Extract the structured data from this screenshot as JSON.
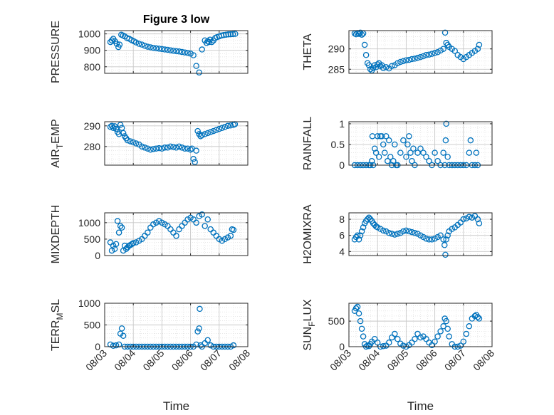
{
  "chart_data": [
    {
      "type": "scatter",
      "title": "Figure 3 low",
      "ylabel": "PRESSURE",
      "ylabel_sub": "",
      "ylabel_tail": "",
      "xlim": [
        0,
        5
      ],
      "ylim": [
        760,
        1020
      ],
      "yticks": [
        800,
        900,
        1000
      ],
      "xticks": [
        "08/03",
        "08/04",
        "08/05",
        "08/06",
        "08/07",
        "08/08"
      ],
      "show_xticklabels": false,
      "xlabel": "",
      "grid": true,
      "x": [
        0.2,
        0.25,
        0.3,
        0.36,
        0.42,
        0.48,
        0.52,
        0.58,
        0.64,
        0.7,
        0.78,
        0.86,
        0.94,
        1.02,
        1.1,
        1.2,
        1.3,
        1.4,
        1.5,
        1.6,
        1.7,
        1.8,
        1.9,
        2.0,
        2.1,
        2.2,
        2.3,
        2.4,
        2.5,
        2.6,
        2.7,
        2.8,
        2.9,
        3.0,
        3.1,
        3.2,
        3.3,
        3.4,
        3.5,
        3.56,
        3.6,
        3.64,
        3.68,
        3.74,
        3.8,
        3.86,
        3.92,
        4.0,
        4.08,
        4.16,
        4.24,
        4.32,
        4.4,
        4.48,
        4.56
      ],
      "y": [
        950,
        960,
        970,
        955,
        940,
        920,
        935,
        995,
        990,
        985,
        975,
        970,
        962,
        955,
        948,
        940,
        935,
        928,
        922,
        918,
        915,
        912,
        910,
        908,
        905,
        903,
        900,
        897,
        895,
        893,
        890,
        887,
        884,
        880,
        870,
        805,
        765,
        905,
        960,
        945,
        955,
        950,
        965,
        950,
        960,
        975,
        980,
        985,
        990,
        993,
        995,
        997,
        998,
        999,
        1000
      ]
    },
    {
      "type": "scatter",
      "title": "",
      "ylabel": "THETA",
      "ylabel_sub": "",
      "ylabel_tail": "",
      "xlim": [
        0,
        5
      ],
      "ylim": [
        284,
        294.5
      ],
      "yticks": [
        285,
        290
      ],
      "xticks": [
        "08/03",
        "08/04",
        "08/05",
        "08/06",
        "08/07",
        "08/08"
      ],
      "show_xticklabels": false,
      "xlabel": "",
      "grid": true,
      "x": [
        0.2,
        0.25,
        0.3,
        0.35,
        0.4,
        0.45,
        0.5,
        0.55,
        0.6,
        0.65,
        0.7,
        0.75,
        0.8,
        0.85,
        0.9,
        0.95,
        1.0,
        1.05,
        1.1,
        1.15,
        1.2,
        1.3,
        1.4,
        1.5,
        1.6,
        1.7,
        1.8,
        1.9,
        2.0,
        2.1,
        2.2,
        2.3,
        2.4,
        2.5,
        2.6,
        2.7,
        2.8,
        2.9,
        3.0,
        3.1,
        3.2,
        3.3,
        3.36,
        3.4,
        3.45,
        3.5,
        3.6,
        3.7,
        3.8,
        3.9,
        4.0,
        4.1,
        4.2,
        4.3,
        4.4,
        4.5,
        4.55
      ],
      "y": [
        293.8,
        293.6,
        293.9,
        293.7,
        294.0,
        293.5,
        293.8,
        291.0,
        288.5,
        286.5,
        286.0,
        285.0,
        284.7,
        285.3,
        286.0,
        285.5,
        286.2,
        286.5,
        285.8,
        286.0,
        285.3,
        285.5,
        285.2,
        285.8,
        286.0,
        286.5,
        286.8,
        287.0,
        287.2,
        287.3,
        287.5,
        287.6,
        287.8,
        288.0,
        288.2,
        288.5,
        288.6,
        288.8,
        289.0,
        289.2,
        289.6,
        290.0,
        294.0,
        291.5,
        291.0,
        290.5,
        290.0,
        289.5,
        288.5,
        288.0,
        287.5,
        288.0,
        288.5,
        289.0,
        289.5,
        290.0,
        291.0
      ]
    },
    {
      "type": "scatter",
      "title": "",
      "ylabel": "AIR",
      "ylabel_sub": "T",
      "ylabel_tail": "EMP",
      "xlim": [
        0,
        5
      ],
      "ylim": [
        271,
        292
      ],
      "yticks": [
        280,
        290
      ],
      "xticks": [
        "08/03",
        "08/04",
        "08/05",
        "08/06",
        "08/07",
        "08/08"
      ],
      "show_xticklabels": false,
      "xlabel": "",
      "grid": true,
      "x": [
        0.2,
        0.25,
        0.3,
        0.35,
        0.4,
        0.45,
        0.5,
        0.55,
        0.6,
        0.65,
        0.7,
        0.75,
        0.8,
        0.9,
        1.0,
        1.1,
        1.2,
        1.3,
        1.4,
        1.5,
        1.6,
        1.7,
        1.8,
        1.9,
        2.0,
        2.1,
        2.2,
        2.3,
        2.4,
        2.5,
        2.6,
        2.7,
        2.8,
        2.9,
        3.0,
        3.05,
        3.1,
        3.15,
        3.2,
        3.25,
        3.3,
        3.35,
        3.4,
        3.5,
        3.6,
        3.7,
        3.8,
        3.9,
        4.0,
        4.1,
        4.2,
        4.3,
        4.4,
        4.5,
        4.55
      ],
      "y": [
        289.5,
        290.0,
        289.0,
        289.8,
        288.5,
        287.0,
        286.0,
        290.5,
        289.0,
        286.5,
        285.0,
        284.0,
        283.0,
        282.5,
        282.0,
        281.5,
        281.0,
        280.0,
        279.5,
        279.0,
        278.5,
        278.8,
        279.0,
        279.2,
        279.0,
        279.5,
        279.5,
        280.0,
        279.8,
        279.5,
        280.0,
        279.5,
        279.0,
        279.0,
        278.5,
        279.0,
        274.0,
        272.5,
        278.0,
        287.5,
        286.0,
        285.0,
        285.5,
        286.0,
        286.5,
        287.0,
        287.5,
        288.0,
        288.5,
        289.0,
        289.5,
        290.0,
        290.2,
        290.5,
        290.8
      ]
    },
    {
      "type": "scatter",
      "title": "",
      "ylabel": "RAINFALL",
      "ylabel_sub": "",
      "ylabel_tail": "",
      "xlim": [
        0,
        5
      ],
      "ylim": [
        0,
        1.05
      ],
      "yticks": [
        0,
        0.5,
        1
      ],
      "xticks": [
        "08/03",
        "08/04",
        "08/05",
        "08/06",
        "08/07",
        "08/08"
      ],
      "show_xticklabels": false,
      "xlabel": "",
      "grid": true,
      "x": [
        0.2,
        0.3,
        0.4,
        0.5,
        0.6,
        0.7,
        0.75,
        0.8,
        0.82,
        0.85,
        0.9,
        0.95,
        1.0,
        1.05,
        1.1,
        1.15,
        1.2,
        1.25,
        1.3,
        1.35,
        1.4,
        1.45,
        1.5,
        1.55,
        1.6,
        1.65,
        1.7,
        1.8,
        1.9,
        2.0,
        2.05,
        2.1,
        2.15,
        2.2,
        2.25,
        2.3,
        2.4,
        2.5,
        2.6,
        2.7,
        2.8,
        2.9,
        3.0,
        3.1,
        3.2,
        3.3,
        3.35,
        3.38,
        3.4,
        3.45,
        3.5,
        3.6,
        3.7,
        3.8,
        3.9,
        4.0,
        4.1,
        4.2,
        4.25,
        4.3,
        4.4,
        4.45,
        4.5
      ],
      "y": [
        0,
        0,
        0,
        0,
        0,
        0,
        0,
        0.1,
        0.7,
        0,
        0.4,
        0.3,
        0.7,
        0.2,
        0.7,
        0.7,
        0.5,
        0.3,
        0.7,
        0.1,
        0.6,
        0.2,
        0,
        0.1,
        0.5,
        0,
        0,
        0.3,
        0.6,
        0.2,
        0.5,
        0.7,
        0.3,
        0.1,
        0.4,
        0,
        0.3,
        0.4,
        0.3,
        0.2,
        0.1,
        0,
        0.3,
        0.1,
        0,
        0.3,
        0,
        0.6,
        1.0,
        0.2,
        0,
        0,
        0,
        0,
        0,
        0,
        0,
        0.3,
        0.6,
        0,
        0,
        0.3,
        0
      ]
    },
    {
      "type": "scatter",
      "title": "",
      "ylabel": "MIXDEPTH",
      "ylabel_sub": "",
      "ylabel_tail": "",
      "xlim": [
        0,
        5
      ],
      "ylim": [
        0,
        1300
      ],
      "yticks": [
        0,
        500,
        1000
      ],
      "xticks": [
        "08/03",
        "08/04",
        "08/05",
        "08/06",
        "08/07",
        "08/08"
      ],
      "show_xticklabels": false,
      "xlabel": "",
      "grid": true,
      "x": [
        0.2,
        0.25,
        0.3,
        0.35,
        0.4,
        0.45,
        0.5,
        0.55,
        0.6,
        0.65,
        0.7,
        0.75,
        0.8,
        0.85,
        0.9,
        0.95,
        1.0,
        1.1,
        1.2,
        1.3,
        1.4,
        1.5,
        1.6,
        1.7,
        1.8,
        1.9,
        2.0,
        2.1,
        2.2,
        2.3,
        2.4,
        2.5,
        2.6,
        2.7,
        2.8,
        2.9,
        3.0,
        3.1,
        3.2,
        3.3,
        3.4,
        3.5,
        3.6,
        3.7,
        3.8,
        3.9,
        4.0,
        4.1,
        4.2,
        4.3,
        4.4,
        4.45,
        4.5
      ],
      "y": [
        400,
        150,
        300,
        200,
        350,
        1050,
        700,
        900,
        850,
        150,
        300,
        200,
        250,
        300,
        320,
        350,
        380,
        400,
        450,
        500,
        600,
        700,
        850,
        950,
        1000,
        1050,
        1000,
        950,
        900,
        800,
        700,
        600,
        800,
        900,
        1000,
        1100,
        1150,
        1100,
        1000,
        1200,
        1250,
        900,
        1100,
        800,
        700,
        600,
        500,
        450,
        500,
        550,
        600,
        800,
        780
      ]
    },
    {
      "type": "scatter",
      "title": "",
      "ylabel": "H2OMIXRA",
      "ylabel_sub": "",
      "ylabel_tail": "",
      "xlim": [
        0,
        5
      ],
      "ylim": [
        3.5,
        8.8
      ],
      "yticks": [
        4,
        6,
        8
      ],
      "xticks": [
        "08/03",
        "08/04",
        "08/05",
        "08/06",
        "08/07",
        "08/08"
      ],
      "show_xticklabels": false,
      "xlabel": "",
      "grid": true,
      "x": [
        0.2,
        0.25,
        0.3,
        0.35,
        0.4,
        0.45,
        0.5,
        0.55,
        0.6,
        0.65,
        0.7,
        0.75,
        0.8,
        0.85,
        0.9,
        0.95,
        1.0,
        1.1,
        1.2,
        1.3,
        1.4,
        1.5,
        1.6,
        1.7,
        1.8,
        1.9,
        2.0,
        2.1,
        2.2,
        2.3,
        2.4,
        2.5,
        2.6,
        2.7,
        2.8,
        2.9,
        3.0,
        3.1,
        3.2,
        3.3,
        3.34,
        3.37,
        3.4,
        3.45,
        3.5,
        3.6,
        3.7,
        3.8,
        3.9,
        4.0,
        4.1,
        4.2,
        4.3,
        4.4,
        4.5,
        4.55
      ],
      "y": [
        5.5,
        5.8,
        6.0,
        5.5,
        6.0,
        6.5,
        7.0,
        7.5,
        7.8,
        8.0,
        8.2,
        8.0,
        7.8,
        7.5,
        7.3,
        7.1,
        7.0,
        6.8,
        6.6,
        6.5,
        6.3,
        6.2,
        6.1,
        6.2,
        6.3,
        6.5,
        6.6,
        6.5,
        6.4,
        6.3,
        6.2,
        6.0,
        5.8,
        5.6,
        5.5,
        5.5,
        5.6,
        5.8,
        6.0,
        5.5,
        4.8,
        3.6,
        5.5,
        6.0,
        6.5,
        6.8,
        7.0,
        7.3,
        7.6,
        8.0,
        8.1,
        8.3,
        8.2,
        8.4,
        8.0,
        7.5
      ]
    },
    {
      "type": "scatter",
      "title": "",
      "ylabel": "TERR",
      "ylabel_sub": "M",
      "ylabel_tail": "SL",
      "xlim": [
        0,
        5
      ],
      "ylim": [
        0,
        1000
      ],
      "yticks": [
        0,
        500,
        1000
      ],
      "xticks": [
        "08/03",
        "08/04",
        "08/05",
        "08/06",
        "08/07",
        "08/08"
      ],
      "show_xticklabels": true,
      "xlabel": "Time",
      "grid": true,
      "x": [
        0.2,
        0.3,
        0.4,
        0.5,
        0.55,
        0.6,
        0.65,
        0.7,
        0.8,
        0.9,
        1.0,
        1.1,
        1.2,
        1.3,
        1.4,
        1.5,
        1.6,
        1.7,
        1.8,
        1.9,
        2.0,
        2.1,
        2.2,
        2.3,
        2.4,
        2.5,
        2.6,
        2.7,
        2.8,
        2.9,
        3.0,
        3.1,
        3.2,
        3.25,
        3.3,
        3.32,
        3.35,
        3.4,
        3.5,
        3.6,
        3.7,
        3.8,
        3.9,
        4.0,
        4.1,
        4.2,
        4.3,
        4.4,
        4.5
      ],
      "y": [
        50,
        20,
        30,
        50,
        300,
        420,
        250,
        0,
        0,
        0,
        0,
        0,
        0,
        0,
        0,
        0,
        0,
        0,
        0,
        0,
        0,
        0,
        0,
        0,
        0,
        0,
        0,
        0,
        0,
        0,
        0,
        0,
        50,
        350,
        420,
        870,
        30,
        0,
        80,
        150,
        30,
        0,
        0,
        0,
        0,
        0,
        0,
        0,
        30
      ]
    },
    {
      "type": "scatter",
      "title": "",
      "ylabel": "SUN",
      "ylabel_sub": "F",
      "ylabel_tail": "LUX",
      "xlim": [
        0,
        5
      ],
      "ylim": [
        0,
        850
      ],
      "yticks": [
        0,
        500
      ],
      "xticks": [
        "08/03",
        "08/04",
        "08/05",
        "08/06",
        "08/07",
        "08/08"
      ],
      "show_xticklabels": true,
      "xlabel": "Time",
      "grid": true,
      "x": [
        0.2,
        0.25,
        0.3,
        0.35,
        0.4,
        0.45,
        0.5,
        0.55,
        0.6,
        0.65,
        0.7,
        0.75,
        0.8,
        0.9,
        1.0,
        1.1,
        1.2,
        1.3,
        1.4,
        1.5,
        1.6,
        1.7,
        1.8,
        1.9,
        2.0,
        2.1,
        2.2,
        2.3,
        2.4,
        2.5,
        2.6,
        2.7,
        2.8,
        2.9,
        3.0,
        3.1,
        3.2,
        3.3,
        3.35,
        3.4,
        3.45,
        3.5,
        3.6,
        3.7,
        3.8,
        3.9,
        4.0,
        4.1,
        4.2,
        4.3,
        4.4,
        4.45,
        4.5,
        4.55
      ],
      "y": [
        700,
        750,
        780,
        650,
        500,
        350,
        200,
        50,
        0,
        20,
        10,
        50,
        100,
        150,
        80,
        0,
        10,
        20,
        80,
        180,
        250,
        150,
        60,
        20,
        0,
        30,
        80,
        150,
        250,
        180,
        200,
        150,
        80,
        30,
        100,
        200,
        300,
        400,
        550,
        500,
        350,
        200,
        50,
        0,
        0,
        20,
        100,
        250,
        400,
        550,
        600,
        620,
        580,
        550
      ]
    }
  ]
}
